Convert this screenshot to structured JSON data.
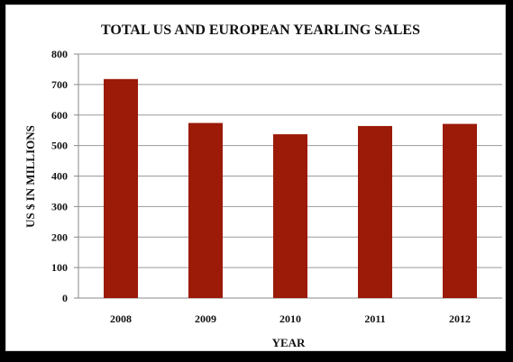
{
  "chart_data": {
    "type": "bar",
    "title": "TOTAL US AND EUROPEAN YEARLING SALES",
    "xlabel": "YEAR",
    "ylabel": "US $ IN MILLIONS",
    "categories": [
      "2008",
      "2009",
      "2010",
      "2011",
      "2012"
    ],
    "values": [
      718,
      574,
      537,
      564,
      571
    ],
    "ylim": [
      0,
      800
    ],
    "yticks": [
      "0",
      "100",
      "200",
      "300",
      "400",
      "500",
      "600",
      "700",
      "800"
    ],
    "grid": true,
    "legend": "none",
    "bar_color": "#9b1a08"
  }
}
